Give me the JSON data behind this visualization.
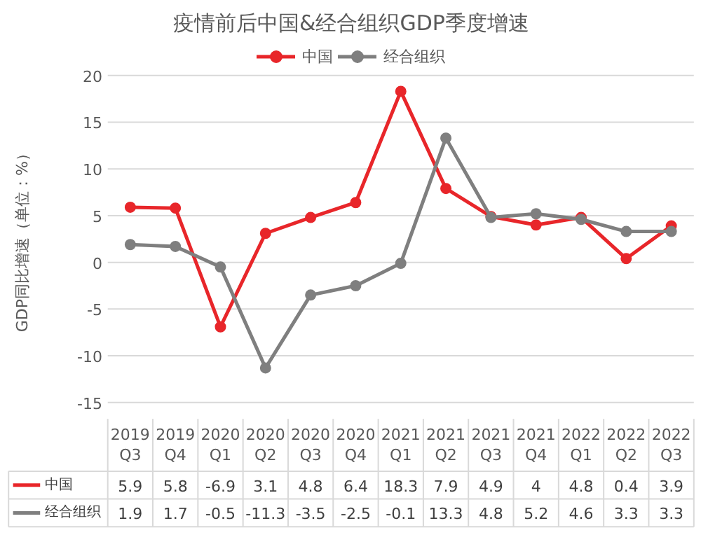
{
  "chart_data": {
    "type": "line",
    "title": "疫情前后中国&经合组织GDP季度增速",
    "ylabel": "GDP同比增速（单位：%）",
    "categories": [
      "2019\nQ3",
      "2019\nQ4",
      "2020\nQ1",
      "2020\nQ2",
      "2020\nQ3",
      "2020\nQ4",
      "2021\nQ1",
      "2021\nQ2",
      "2021\nQ3",
      "2021\nQ4",
      "2022\nQ1",
      "2022\nQ2",
      "2022\nQ3"
    ],
    "series": [
      {
        "name": "中国",
        "color": "#e8262a",
        "values": [
          5.9,
          5.8,
          -6.9,
          3.1,
          4.8,
          6.4,
          18.3,
          7.9,
          4.9,
          4,
          4.8,
          0.4,
          3.9
        ]
      },
      {
        "name": "经合组织",
        "color": "#7f7f7f",
        "values": [
          1.9,
          1.7,
          -0.5,
          -11.3,
          -3.5,
          -2.5,
          -0.1,
          13.3,
          4.8,
          5.2,
          4.6,
          3.3,
          3.3
        ]
      }
    ],
    "ylim": [
      -15,
      20
    ],
    "yticks": [
      -15,
      -10,
      -5,
      0,
      5,
      10,
      15,
      20
    ],
    "grid": "y",
    "legend": "top",
    "marker": "circle",
    "line_style": "solid",
    "data_labels": true
  }
}
